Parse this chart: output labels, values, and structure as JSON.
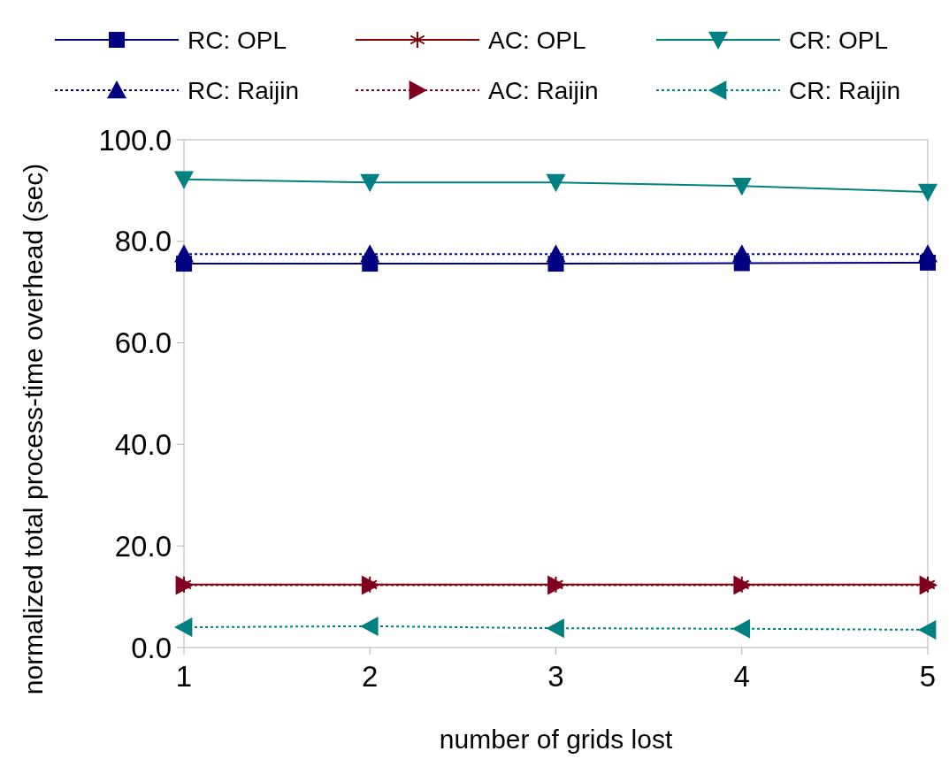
{
  "chart_data": {
    "type": "line",
    "xlabel": "number of grids lost",
    "ylabel": "normalized total process-time overhead (sec)",
    "x": [
      1,
      2,
      3,
      4,
      5
    ],
    "xlim": [
      1,
      5
    ],
    "xticks": [
      1,
      2,
      3,
      4,
      5
    ],
    "ylim": [
      0,
      100
    ],
    "yticks": [
      {
        "value": 0,
        "label": "0.0"
      },
      {
        "value": 20,
        "label": "20.0"
      },
      {
        "value": 40,
        "label": "40.0"
      },
      {
        "value": 60,
        "label": "60.0"
      },
      {
        "value": 80,
        "label": "80.0"
      },
      {
        "value": 100,
        "label": "100.0"
      }
    ],
    "grid": false,
    "legend": "top",
    "series": [
      {
        "name": "RC: OPL",
        "color": "#000080",
        "marker": "square",
        "line_style": "solid",
        "values": [
          75.6,
          75.6,
          75.6,
          75.7,
          75.8
        ]
      },
      {
        "name": "AC: OPL",
        "color": "#800000",
        "marker": "cross",
        "line_style": "solid",
        "values": [
          12.4,
          12.4,
          12.4,
          12.4,
          12.4
        ]
      },
      {
        "name": "CR: OPL",
        "color": "#008080",
        "marker": "triangle-down",
        "line_style": "solid",
        "values": [
          92.2,
          91.6,
          91.6,
          90.9,
          89.7
        ]
      },
      {
        "name": "RC: Raijin",
        "color": "#000080",
        "marker": "triangle",
        "line_style": "dotted",
        "values": [
          77.5,
          77.5,
          77.5,
          77.5,
          77.5
        ]
      },
      {
        "name": "AC: Raijin",
        "color": "#800020",
        "marker": "triangle-right",
        "line_style": "dotted",
        "values": [
          12.3,
          12.3,
          12.3,
          12.3,
          12.3
        ]
      },
      {
        "name": "CR: Raijin",
        "color": "#008080",
        "marker": "triangle-left",
        "line_style": "dotted",
        "values": [
          4.0,
          4.2,
          3.8,
          3.7,
          3.5
        ]
      }
    ]
  }
}
